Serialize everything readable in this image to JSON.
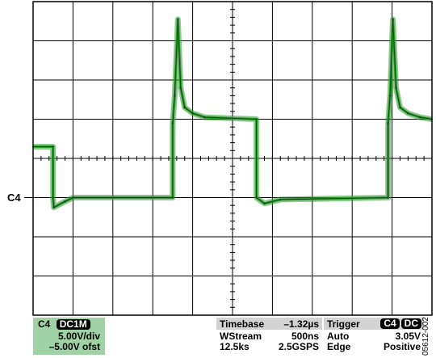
{
  "chart_data": {
    "type": "line",
    "title": "",
    "xlabel": "",
    "ylabel": "",
    "x_divisions": 10,
    "y_divisions": 8,
    "grid": true,
    "channel_marker": "C4",
    "trace_color": "#2e9b2e",
    "trace_dark_color": "#0f4a12",
    "ylim_div": [
      -4,
      4
    ],
    "series": [
      {
        "x_div": [
          0,
          0.5,
          0.5,
          0.52,
          0.8,
          1.0,
          3.5,
          3.5,
          3.55,
          3.63,
          3.7,
          3.8,
          4.0,
          4.3,
          5.6,
          5.6,
          5.8,
          6.2,
          8.9,
          8.9,
          8.95,
          9.02,
          9.1,
          9.2,
          9.4,
          9.7,
          10.0
        ],
        "y_div": [
          0.3,
          0.3,
          -1.0,
          -1.25,
          -1.1,
          -1.0,
          -1.0,
          0.9,
          1.6,
          3.55,
          1.8,
          1.3,
          1.15,
          1.05,
          1.0,
          -1.0,
          -1.15,
          -1.05,
          -1.0,
          0.9,
          1.6,
          3.55,
          1.8,
          1.3,
          1.15,
          1.05,
          1.0
        ]
      }
    ]
  },
  "channel_panel": {
    "channel": "C4",
    "coupling": "DC1M",
    "volts_div": "5.00V/div",
    "offset": "–5.00V ofst"
  },
  "timebase_panel": {
    "label": "Timebase",
    "delay": "–1.32µs",
    "mode": "WStream",
    "time_div": "500ns",
    "samples": "12.5ks",
    "rate": "2.5GSPS"
  },
  "trigger_panel": {
    "label": "Trigger",
    "source": "C4",
    "coupling": "DC",
    "mode": "Auto",
    "level": "3.05V",
    "type": "Edge",
    "slope": "Positive"
  },
  "figure_id": "05612-002"
}
